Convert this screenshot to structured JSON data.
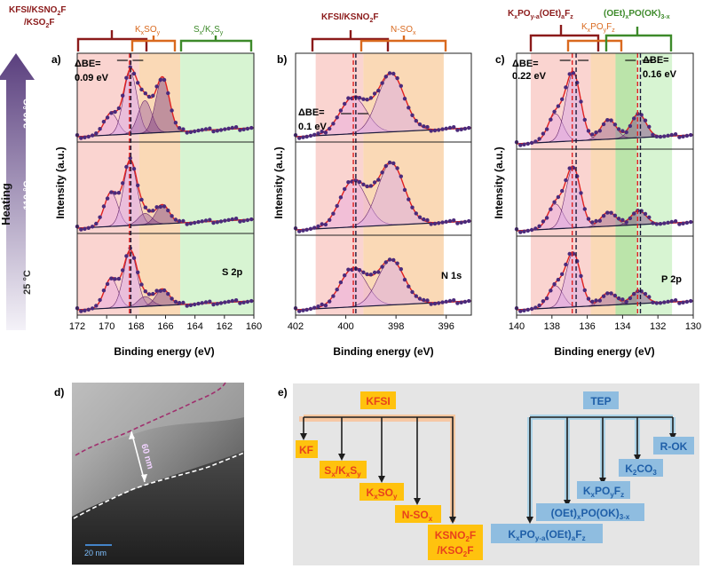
{
  "heating": {
    "label": "Heating",
    "temps": [
      "340 °C",
      "110 °C",
      "25 °C"
    ]
  },
  "panel_a": {
    "letter": "a)",
    "bracket_labels": [
      {
        "text": "KFSI/KSNO",
        "sub": "2",
        "tail": "F"
      },
      {
        "text": "/KSO",
        "sub": "2",
        "tail": "F"
      },
      {
        "text": "K",
        "sub": "x",
        "mid": "SO",
        "sub2": "y"
      },
      {
        "text": "S",
        "sub": "x",
        "mid": "/K",
        "sub2": "x",
        "tail": "S",
        "sub3": "y"
      }
    ],
    "dbe_label": "ΔBE=",
    "dbe_value": "0.09 eV",
    "core_level": "S 2p",
    "ylabel": "Intensity (a.u.)",
    "xlabel": "Binding energy (eV)",
    "xticks": [
      "172",
      "170",
      "168",
      "166",
      "164",
      "162",
      "160"
    ]
  },
  "panel_b": {
    "letter": "b)",
    "bracket_labels": [
      {
        "text": "KFSI/KSNO",
        "sub": "2",
        "tail": "F"
      },
      {
        "text": "N-SO",
        "sub": "x"
      }
    ],
    "dbe_label": "ΔBE=",
    "dbe_value": "0.1 eV",
    "core_level": "N 1s",
    "ylabel": "Intensity (a.u.)",
    "xlabel": "Binding energy (eV)",
    "xticks": [
      "402",
      "400",
      "398",
      "396"
    ]
  },
  "panel_c": {
    "letter": "c)",
    "bracket_labels": [
      {
        "text": "K",
        "sub": "x",
        "mid": "PO",
        "sub2": "y-a",
        "tail": "(OEt)",
        "sub3": "a",
        "tail2": "F",
        "sub4": "z"
      },
      {
        "text": "K",
        "sub": "x",
        "mid": "PO",
        "sub2": "y",
        "tail": "F",
        "sub3": "z"
      },
      {
        "text": "(OEt)",
        "sub": "x",
        "mid": "PO(OK)",
        "sub2": "3-x"
      }
    ],
    "dbe_left_label": "ΔBE=",
    "dbe_left_value": "0.22 eV",
    "dbe_right_label": "ΔBE=",
    "dbe_right_value": "0.16 eV",
    "core_level": "P 2p",
    "ylabel": "Intensity (a.u.)",
    "xlabel": "Binding energy (eV)",
    "xticks": [
      "140",
      "138",
      "136",
      "134",
      "132",
      "130"
    ]
  },
  "panel_d": {
    "letter": "d)",
    "thickness": "60 nm",
    "scalebar": "20 nm"
  },
  "panel_e": {
    "letter": "e)",
    "kfsi_root": "KFSI",
    "kfsi_products": [
      "KF",
      "Sx/KxSy",
      "KxSOy",
      "N-SOx",
      "KSNO2F",
      "/KSO2F"
    ],
    "tep_root": "TEP",
    "tep_products": [
      "R-OK",
      "K2CO3",
      "KxPOyFz",
      "(OEt)xPO(OK)3-x",
      "KxPOy-a(OEt)aFz"
    ]
  },
  "colors": {
    "dark_red": "#8b1a1a",
    "orange": "#d9691e",
    "green": "#3d8a2a",
    "purple": "#4b2a7b",
    "fit_red": "#e02020",
    "envelope": "#1a1a3a",
    "kfsi_box": "#ffc20e",
    "kfsi_text": "#e8421c",
    "tep_box": "#8fbde0",
    "tep_text": "#1f5fa8"
  },
  "chart_data": [
    {
      "type": "line",
      "title": "S 2p",
      "xlabel": "Binding energy (eV)",
      "ylabel": "Intensity (a.u.)",
      "xlim": [
        172,
        160
      ],
      "regions": [
        {
          "name": "KFSI/KSNO2F/KSO2F",
          "range": [
            172,
            167.8
          ]
        },
        {
          "name": "KxSOy",
          "range": [
            167.8,
            165
          ]
        },
        {
          "name": "Sx/KxSy",
          "range": [
            165,
            160
          ]
        }
      ],
      "series": [
        {
          "name": "340 °C",
          "peaks": [
            {
              "center": 169.7,
              "height": 0.3
            },
            {
              "center": 168.4,
              "height": 0.85
            },
            {
              "center": 167.4,
              "height": 0.45
            },
            {
              "center": 166.2,
              "height": 0.75
            }
          ]
        },
        {
          "name": "110 °C",
          "peaks": [
            {
              "center": 169.7,
              "height": 0.45
            },
            {
              "center": 168.4,
              "height": 0.85
            },
            {
              "center": 167.4,
              "height": 0.15
            },
            {
              "center": 166.2,
              "height": 0.25
            }
          ]
        },
        {
          "name": "25 °C",
          "peaks": [
            {
              "center": 169.7,
              "height": 0.45
            },
            {
              "center": 168.4,
              "height": 0.85
            },
            {
              "center": 167.4,
              "height": 0.15
            },
            {
              "center": 166.2,
              "height": 0.25
            }
          ]
        }
      ],
      "delta_be_eV": 0.09
    },
    {
      "type": "line",
      "title": "N 1s",
      "xlabel": "Binding energy (eV)",
      "ylabel": "Intensity (a.u.)",
      "xlim": [
        402,
        395
      ],
      "regions": [
        {
          "name": "KFSI/KSNO2F",
          "range": [
            401.2,
            399.3
          ]
        },
        {
          "name": "N-SOx",
          "range": [
            399.3,
            396.1
          ]
        }
      ],
      "series": [
        {
          "name": "340 °C",
          "peaks": [
            {
              "center": 399.7,
              "height": 0.5
            },
            {
              "center": 398.2,
              "height": 0.8
            }
          ]
        },
        {
          "name": "110 °C",
          "peaks": [
            {
              "center": 399.7,
              "height": 0.6
            },
            {
              "center": 398.2,
              "height": 0.8
            }
          ]
        },
        {
          "name": "25 °C",
          "peaks": [
            {
              "center": 399.7,
              "height": 0.6
            },
            {
              "center": 398.2,
              "height": 0.7
            }
          ]
        }
      ],
      "delta_be_eV": 0.1
    },
    {
      "type": "line",
      "title": "P 2p",
      "xlabel": "Binding energy (eV)",
      "ylabel": "Intensity (a.u.)",
      "xlim": [
        140,
        130
      ],
      "regions": [
        {
          "name": "KxPOy-a(OEt)aFz",
          "range": [
            139.2,
            135.8
          ]
        },
        {
          "name": "KxPOyFz",
          "range": [
            135.8,
            134.4
          ]
        },
        {
          "name": "(OEt)xPO(OK)3-x",
          "range": [
            134.4,
            131.2
          ]
        }
      ],
      "series": [
        {
          "name": "340 °C",
          "peaks": [
            {
              "center": 137.8,
              "height": 0.35
            },
            {
              "center": 136.8,
              "height": 0.85
            },
            {
              "center": 134.8,
              "height": 0.25
            },
            {
              "center": 133.1,
              "height": 0.3
            }
          ]
        },
        {
          "name": "110 °C",
          "peaks": [
            {
              "center": 137.8,
              "height": 0.35
            },
            {
              "center": 136.8,
              "height": 0.85
            },
            {
              "center": 134.8,
              "height": 0.2
            },
            {
              "center": 133.1,
              "height": 0.2
            }
          ]
        },
        {
          "name": "25 °C",
          "peaks": [
            {
              "center": 137.8,
              "height": 0.35
            },
            {
              "center": 136.8,
              "height": 0.85
            },
            {
              "center": 134.8,
              "height": 0.2
            },
            {
              "center": 133.1,
              "height": 0.2
            }
          ]
        }
      ],
      "delta_be_eV": [
        0.22,
        0.16
      ]
    }
  ]
}
